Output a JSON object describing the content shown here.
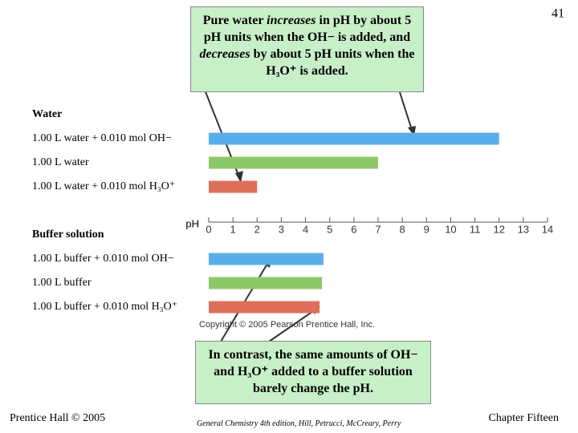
{
  "page_number": "41",
  "callouts": [
    {
      "parts": [
        "Pure water ",
        "increases",
        " in pH by about 5 pH units when the OH− is added, and ",
        "decreases",
        " by about 5 pH units when the H₃O⁺ is added."
      ]
    },
    {
      "parts": [
        "In contrast, the same amounts of OH− and H₃O⁺ added to a buffer solution barely change the pH."
      ]
    }
  ],
  "chart_data": {
    "type": "bar",
    "orientation": "horizontal",
    "x_label": "pH",
    "xlim": [
      0,
      14
    ],
    "xticks": [
      0,
      1,
      2,
      3,
      4,
      5,
      6,
      7,
      8,
      9,
      10,
      11,
      12,
      13,
      14
    ],
    "groups": [
      {
        "name": "Water",
        "categories": [
          "1.00 L water + 0.010 mol OH−",
          "1.00 L water",
          "1.00 L water + 0.010 mol H₃O⁺"
        ],
        "values": [
          12,
          7,
          2
        ],
        "colors": [
          "#5aaee8",
          "#8dc86a",
          "#de6f5a"
        ]
      },
      {
        "name": "Buffer solution",
        "categories": [
          "1.00 L buffer + 0.010 mol OH−",
          "1.00 L buffer",
          "1.00 L buffer + 0.010 mol H₃O⁺"
        ],
        "values": [
          4.74,
          4.68,
          4.58
        ],
        "colors": [
          "#5aaee8",
          "#8dc86a",
          "#de6f5a"
        ]
      }
    ],
    "copyright": "Copyright © 2005 Pearson Prentice Hall, Inc."
  },
  "footer": {
    "left": "Prentice Hall © 2005",
    "center": "General Chemistry 4th edition, Hill, Petrucci, McCreary, Perry",
    "right": "Chapter Fifteen"
  }
}
